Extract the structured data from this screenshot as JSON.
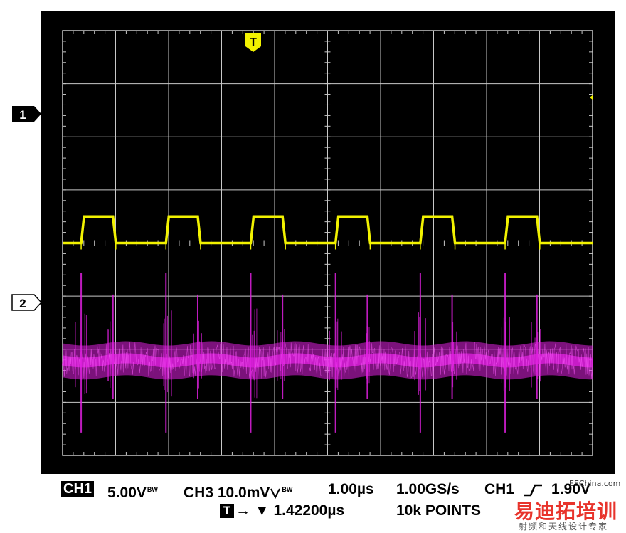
{
  "chart_data": {
    "type": "line",
    "grid": {
      "x_divisions": 10,
      "y_divisions": 8
    },
    "trigger_marker": "T",
    "series": [
      {
        "name": "1",
        "color": "#f2f200",
        "kind": "square-wave",
        "high_divisions": 4.5,
        "low_divisions": 4.0,
        "rise_times_div": [
          0.35,
          1.95,
          3.55,
          5.15,
          6.75,
          8.35
        ],
        "fall_times_div": [
          0.95,
          2.55,
          4.15,
          5.75,
          7.35,
          8.95
        ]
      },
      {
        "name": "2",
        "color": "#e020e0",
        "kind": "noise-band",
        "center_divisions": 1.83,
        "band_halfwidth_divisions": 0.28,
        "spike_times_div": [
          0.35,
          0.95,
          1.95,
          2.55,
          3.55,
          4.15,
          5.15,
          5.75,
          6.75,
          7.35,
          8.35,
          8.95
        ],
        "spike_up_divisions": 1.6,
        "spike_down_divisions": 1.4
      }
    ]
  },
  "channel_markers": {
    "ch1_label": "1",
    "ch2_label": "2"
  },
  "readouts": {
    "ch1_badge": "CH1",
    "ch1_scale": "5.00V",
    "ch1_bw": "B",
    "ch1_bw_sub": "W",
    "ch3_scale": "CH3 10.0mV",
    "ch3_bw": "B",
    "ch3_bw_sub": "W",
    "timebase": "1.00µs",
    "sample_rate": "1.00GS/s",
    "trigger_source": "CH1",
    "trigger_level": "1.90V",
    "trigger_badge": "T",
    "trigger_position": "→ ▼ 1.42200µs",
    "record_length": "10k POINTS"
  },
  "watermark": {
    "site": "EEChina.com",
    "logo_cn": "易迪拓培训",
    "tagline_cn": "射频和天线设计专家"
  },
  "colors": {
    "bezel": "#000000",
    "grid": "#c8c8c8",
    "ch1": "#f2f200",
    "ch2": "#e020e0",
    "logo_red": "#e8342c",
    "logo_orange": "#f28a1e"
  }
}
